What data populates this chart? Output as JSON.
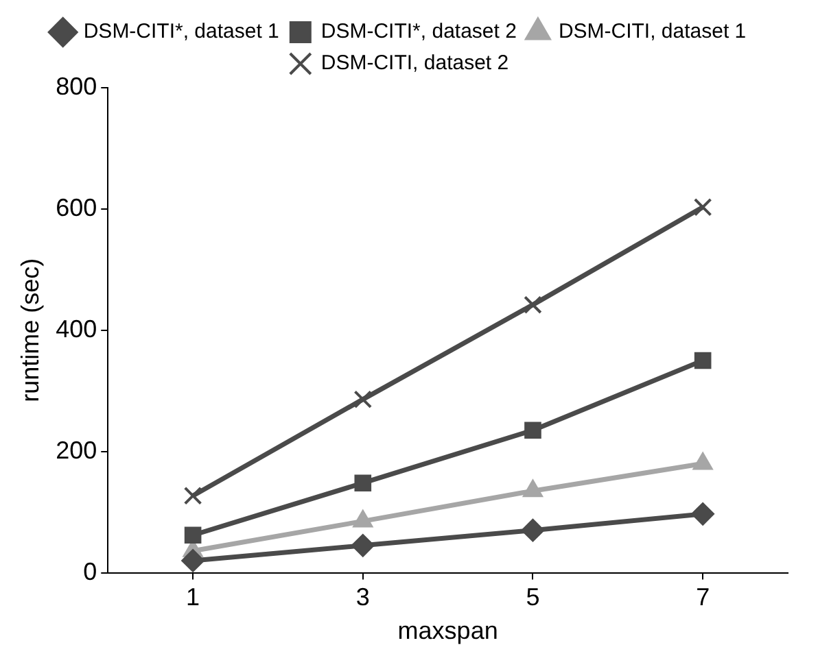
{
  "chart_data": {
    "type": "line",
    "xlabel": "maxspan",
    "ylabel": "runtime (sec)",
    "categories": [
      "1",
      "3",
      "5",
      "7"
    ],
    "ylim": [
      0,
      800
    ],
    "yticks": [
      0,
      200,
      400,
      600,
      800
    ],
    "grid": false,
    "legend": "top",
    "line_style": "solid",
    "series": [
      {
        "name": "DSM-CITI*, dataset 1",
        "color": "#4a4a4a",
        "marker": "diamond",
        "values": [
          20,
          45,
          70,
          97
        ]
      },
      {
        "name": "DSM-CITI*, dataset 2",
        "color": "#4a4a4a",
        "marker": "square",
        "values": [
          62,
          148,
          235,
          350
        ]
      },
      {
        "name": "DSM-CITI, dataset 1",
        "color": "#a6a6a6",
        "marker": "triangle",
        "values": [
          36,
          85,
          135,
          180
        ]
      },
      {
        "name": "DSM-CITI, dataset 2",
        "color": "#4a4a4a",
        "marker": "cross",
        "values": [
          127,
          286,
          442,
          603
        ]
      }
    ]
  }
}
